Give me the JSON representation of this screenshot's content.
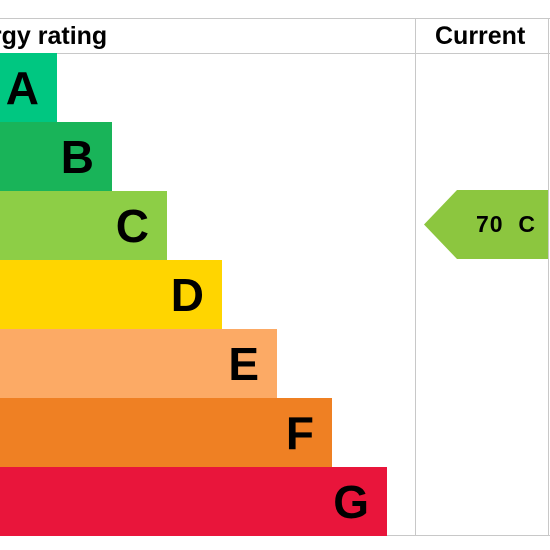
{
  "header": {
    "rating_label": "ergy rating",
    "current_label": "Current"
  },
  "chart_data": {
    "type": "bar",
    "categories": [
      "A",
      "B",
      "C",
      "D",
      "E",
      "F",
      "G"
    ],
    "band_order": [
      1,
      2,
      3,
      4,
      5,
      6,
      7
    ],
    "colors": [
      "#00c781",
      "#19b459",
      "#8dce46",
      "#ffd500",
      "#fcaa65",
      "#ef8023",
      "#e9153b"
    ],
    "current": {
      "label": "70  C",
      "score": 70,
      "band": "C",
      "color": "#8cc63f"
    }
  }
}
